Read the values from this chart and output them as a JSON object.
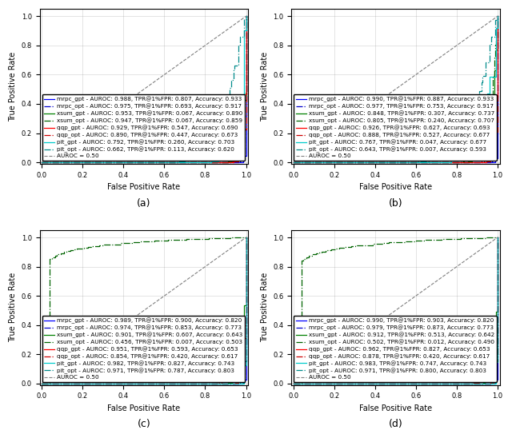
{
  "subplots": [
    {
      "label": "(a)",
      "series": [
        {
          "name": "mrpc_gpt",
          "color": "#0000FF",
          "linestyle": "-",
          "auroc": 0.988,
          "tpr1fpr": 0.807,
          "acc": 0.933,
          "shape_a": 18.0,
          "shape_b": 0.8
        },
        {
          "name": "mrpc_opt",
          "color": "#0000CD",
          "linestyle": "-.",
          "auroc": 0.975,
          "tpr1fpr": 0.693,
          "acc": 0.917,
          "shape_a": 14.0,
          "shape_b": 0.9
        },
        {
          "name": "xsum_gpt",
          "color": "#008000",
          "linestyle": "-",
          "auroc": 0.953,
          "tpr1fpr": 0.067,
          "acc": 0.89,
          "shape_a": 4.0,
          "shape_b": 0.6
        },
        {
          "name": "xsum_opt",
          "color": "#006400",
          "linestyle": "-.",
          "auroc": 0.947,
          "tpr1fpr": 0.067,
          "acc": 0.859,
          "shape_a": 3.5,
          "shape_b": 0.62
        },
        {
          "name": "qqp_gpt",
          "color": "#FF0000",
          "linestyle": "-",
          "auroc": 0.929,
          "tpr1fpr": 0.547,
          "acc": 0.69,
          "shape_a": 8.0,
          "shape_b": 1.1
        },
        {
          "name": "qqp_opt",
          "color": "#CC0000",
          "linestyle": "-.",
          "auroc": 0.89,
          "tpr1fpr": 0.447,
          "acc": 0.673,
          "shape_a": 6.0,
          "shape_b": 1.2
        },
        {
          "name": "pit_gpt",
          "color": "#00CCCC",
          "linestyle": "-",
          "auroc": 0.792,
          "tpr1fpr": 0.26,
          "acc": 0.703,
          "shape_a": 3.0,
          "shape_b": 1.5
        },
        {
          "name": "pit_opt",
          "color": "#008B8B",
          "linestyle": "-.",
          "auroc": 0.662,
          "tpr1fpr": 0.113,
          "acc": 0.62,
          "shape_a": 1.5,
          "shape_b": 1.8
        }
      ]
    },
    {
      "label": "(b)",
      "series": [
        {
          "name": "mrpc_gpt",
          "color": "#0000FF",
          "linestyle": "-",
          "auroc": 0.99,
          "tpr1fpr": 0.887,
          "acc": 0.933,
          "shape_a": 20.0,
          "shape_b": 0.75
        },
        {
          "name": "mrpc_opt",
          "color": "#0000CD",
          "linestyle": "-.",
          "auroc": 0.977,
          "tpr1fpr": 0.753,
          "acc": 0.917,
          "shape_a": 15.0,
          "shape_b": 0.85
        },
        {
          "name": "xsum_gpt",
          "color": "#008000",
          "linestyle": "-",
          "auroc": 0.848,
          "tpr1fpr": 0.307,
          "acc": 0.737,
          "shape_a": 3.0,
          "shape_b": 1.1
        },
        {
          "name": "xsum_opt",
          "color": "#006400",
          "linestyle": "-.",
          "auroc": 0.805,
          "tpr1fpr": 0.24,
          "acc": 0.707,
          "shape_a": 2.5,
          "shape_b": 1.2
        },
        {
          "name": "qqp_gpt",
          "color": "#FF0000",
          "linestyle": "-",
          "auroc": 0.926,
          "tpr1fpr": 0.627,
          "acc": 0.693,
          "shape_a": 8.0,
          "shape_b": 1.05
        },
        {
          "name": "qqp_opt",
          "color": "#CC0000",
          "linestyle": "-.",
          "auroc": 0.888,
          "tpr1fpr": 0.527,
          "acc": 0.677,
          "shape_a": 6.0,
          "shape_b": 1.15
        },
        {
          "name": "pit_gpt",
          "color": "#00CCCC",
          "linestyle": "-",
          "auroc": 0.767,
          "tpr1fpr": 0.047,
          "acc": 0.677,
          "shape_a": 1.8,
          "shape_b": 1.3
        },
        {
          "name": "pit_opt",
          "color": "#008B8B",
          "linestyle": "-.",
          "auroc": 0.643,
          "tpr1fpr": 0.007,
          "acc": 0.593,
          "shape_a": 1.2,
          "shape_b": 1.6
        }
      ]
    },
    {
      "label": "(c)",
      "series": [
        {
          "name": "mrpc_gpt",
          "color": "#0000FF",
          "linestyle": "-",
          "auroc": 0.989,
          "tpr1fpr": 0.9,
          "acc": 0.82,
          "shape_a": 20.0,
          "shape_b": 0.75
        },
        {
          "name": "mrpc_opt",
          "color": "#0000CD",
          "linestyle": "-.",
          "auroc": 0.974,
          "tpr1fpr": 0.853,
          "acc": 0.773,
          "shape_a": 16.0,
          "shape_b": 0.85
        },
        {
          "name": "xsum_gpt",
          "color": "#008000",
          "linestyle": "-",
          "auroc": 0.901,
          "tpr1fpr": 0.607,
          "acc": 0.643,
          "shape_a": 5.5,
          "shape_b": 0.95
        },
        {
          "name": "xsum_opt",
          "color": "#006400",
          "linestyle": "-.",
          "auroc": 0.456,
          "tpr1fpr": 0.007,
          "acc": 0.503,
          "shape_a": 0.7,
          "shape_b": 1.2
        },
        {
          "name": "qqp_gpt",
          "color": "#FF0000",
          "linestyle": "-",
          "auroc": 0.951,
          "tpr1fpr": 0.593,
          "acc": 0.653,
          "shape_a": 9.0,
          "shape_b": 0.85
        },
        {
          "name": "qqp_opt",
          "color": "#CC0000",
          "linestyle": "-.",
          "auroc": 0.854,
          "tpr1fpr": 0.42,
          "acc": 0.617,
          "shape_a": 3.5,
          "shape_b": 1.1
        },
        {
          "name": "pit_gpt",
          "color": "#00CCCC",
          "linestyle": "-",
          "auroc": 0.982,
          "tpr1fpr": 0.827,
          "acc": 0.743,
          "shape_a": 18.0,
          "shape_b": 0.78
        },
        {
          "name": "pit_opt",
          "color": "#008B8B",
          "linestyle": "-.",
          "auroc": 0.971,
          "tpr1fpr": 0.787,
          "acc": 0.803,
          "shape_a": 14.0,
          "shape_b": 0.82
        }
      ]
    },
    {
      "label": "(d)",
      "series": [
        {
          "name": "mrpc_gpt",
          "color": "#0000FF",
          "linestyle": "-",
          "auroc": 0.99,
          "tpr1fpr": 0.903,
          "acc": 0.82,
          "shape_a": 20.0,
          "shape_b": 0.75
        },
        {
          "name": "mrpc_opt",
          "color": "#0000CD",
          "linestyle": "-.",
          "auroc": 0.979,
          "tpr1fpr": 0.873,
          "acc": 0.773,
          "shape_a": 16.0,
          "shape_b": 0.82
        },
        {
          "name": "xsum_gpt",
          "color": "#008000",
          "linestyle": "-",
          "auroc": 0.912,
          "tpr1fpr": 0.513,
          "acc": 0.642,
          "shape_a": 6.0,
          "shape_b": 0.92
        },
        {
          "name": "xsum_opt",
          "color": "#006400",
          "linestyle": "-.",
          "auroc": 0.502,
          "tpr1fpr": 0.012,
          "acc": 0.49,
          "shape_a": 0.75,
          "shape_b": 1.15
        },
        {
          "name": "qqp_gpt",
          "color": "#FF0000",
          "linestyle": "-",
          "auroc": 0.962,
          "tpr1fpr": 0.827,
          "acc": 0.653,
          "shape_a": 12.0,
          "shape_b": 0.82
        },
        {
          "name": "qqp_opt",
          "color": "#CC0000",
          "linestyle": "-.",
          "auroc": 0.878,
          "tpr1fpr": 0.42,
          "acc": 0.617,
          "shape_a": 4.0,
          "shape_b": 1.05
        },
        {
          "name": "pit_gpt",
          "color": "#00CCCC",
          "linestyle": "-",
          "auroc": 0.983,
          "tpr1fpr": 0.747,
          "acc": 0.743,
          "shape_a": 17.0,
          "shape_b": 0.8
        },
        {
          "name": "pit_opt",
          "color": "#008B8B",
          "linestyle": "-.",
          "auroc": 0.971,
          "tpr1fpr": 0.8,
          "acc": 0.803,
          "shape_a": 14.0,
          "shape_b": 0.82
        }
      ]
    }
  ],
  "xlabel": "False Positive Rate",
  "ylabel": "True Positive Rate",
  "axis_fontsize": 7,
  "legend_fontsize": 5.2,
  "tick_fontsize": 6,
  "label_fontsize": 9
}
